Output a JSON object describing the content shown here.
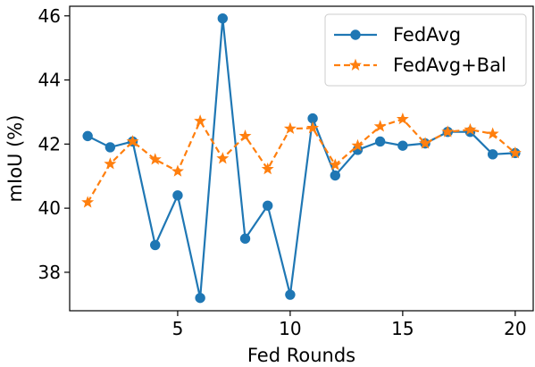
{
  "chart_data": {
    "type": "line",
    "xlabel": "Fed Rounds",
    "ylabel": "mIoU (%)",
    "xlim": [
      0.2,
      20.8
    ],
    "ylim": [
      36.8,
      46.3
    ],
    "xticks": [
      5,
      10,
      15,
      20
    ],
    "yticks": [
      38,
      40,
      42,
      44,
      46
    ],
    "grid": false,
    "legend_position": "top-right",
    "x": [
      1,
      2,
      3,
      4,
      5,
      6,
      7,
      8,
      9,
      10,
      11,
      12,
      13,
      14,
      15,
      16,
      17,
      18,
      19,
      20
    ],
    "series": [
      {
        "name": "FedAvg",
        "color": "#1f77b4",
        "line_style": "solid",
        "marker": "circle",
        "values": [
          42.25,
          41.9,
          42.08,
          38.85,
          40.4,
          37.2,
          45.92,
          39.05,
          40.08,
          37.3,
          42.8,
          41.02,
          41.82,
          42.08,
          41.95,
          42.02,
          42.38,
          42.38,
          41.68,
          41.72
        ]
      },
      {
        "name": "FedAvg+Bal",
        "color": "#ff7f0e",
        "line_style": "dashed",
        "marker": "star",
        "values": [
          40.18,
          41.38,
          42.08,
          41.52,
          41.15,
          42.72,
          41.55,
          42.25,
          41.22,
          42.48,
          42.5,
          41.35,
          41.95,
          42.55,
          42.78,
          42.02,
          42.38,
          42.45,
          42.32,
          41.72
        ]
      }
    ]
  }
}
